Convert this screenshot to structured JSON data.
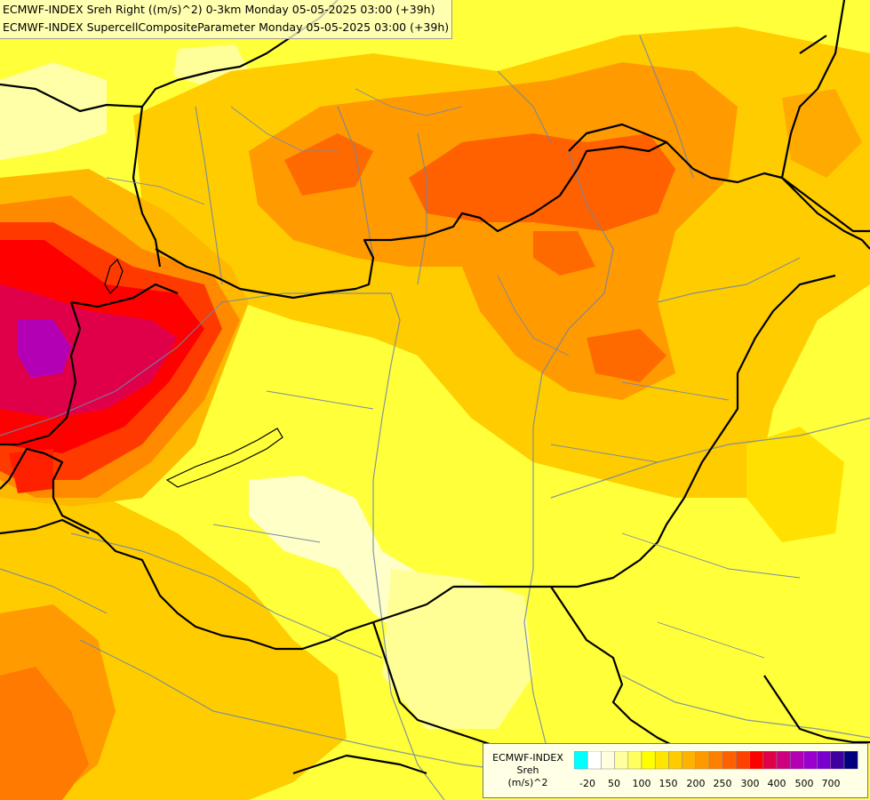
{
  "header": {
    "line1": "ECMWF-INDEX Sreh Right ((m/s)^2) 0-3km Monday 05-05-2025 03:00 (+39h)",
    "line2": "ECMWF-INDEX SupercellCompositeParameter Monday 05-05-2025 03:00 (+39h)"
  },
  "legend": {
    "title_line1": "ECMWF-INDEX",
    "title_line2": "Sreh",
    "title_line3": "(m/s)^2",
    "colors": [
      "#00ffff",
      "#ffffff",
      "#ffffe0",
      "#ffffa0",
      "#ffff60",
      "#ffff00",
      "#ffe600",
      "#ffcc00",
      "#ffb300",
      "#ff9900",
      "#ff8000",
      "#ff6000",
      "#ff4000",
      "#ff0000",
      "#e0004a",
      "#cc0080",
      "#b400b4",
      "#9900d0",
      "#7a00d0",
      "#4000a0",
      "#000080"
    ],
    "labels": [
      "-20",
      "50",
      "100",
      "150",
      "200",
      "250",
      "300",
      "400",
      "500",
      "700"
    ]
  }
}
